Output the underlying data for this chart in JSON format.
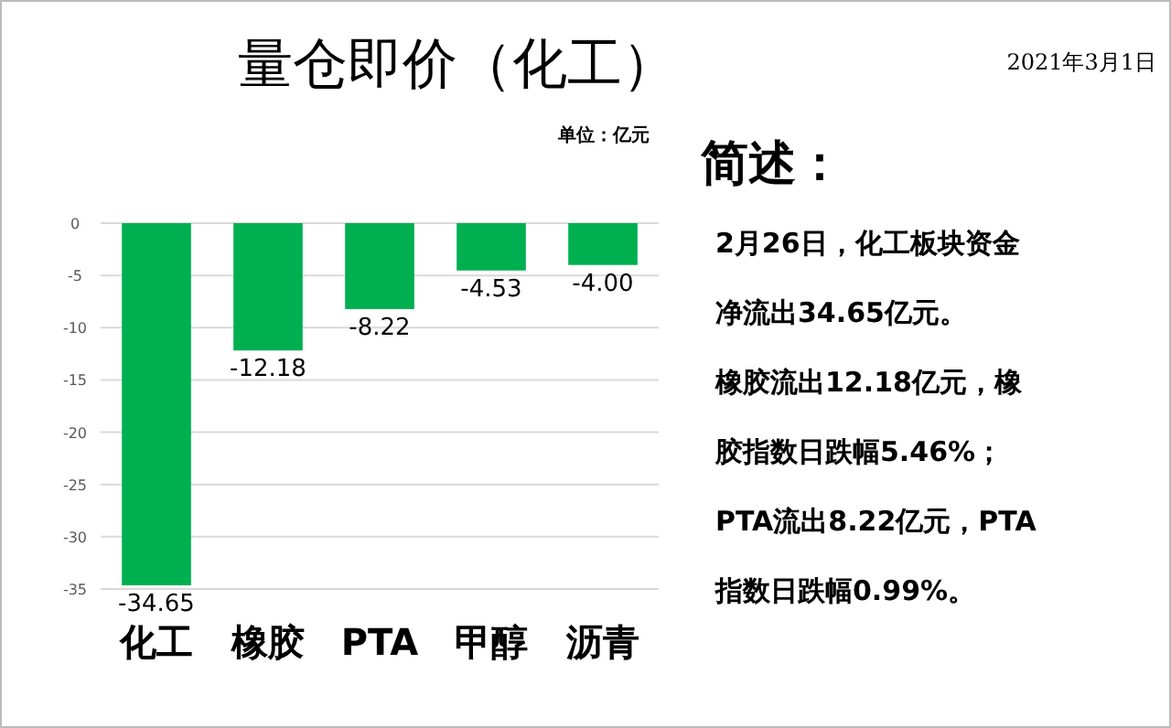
{
  "chart_data": {
    "type": "bar",
    "title": "量仓即价（化工）",
    "subtitle": "单位：亿元",
    "categories": [
      "化工",
      "橡胶",
      "PTA",
      "甲醇",
      "沥青"
    ],
    "values": [
      -34.65,
      -12.18,
      -8.22,
      -4.53,
      -4.0
    ],
    "value_labels": [
      "-34.65",
      "-12.18",
      "-8.22",
      "-4.53",
      "-4.00"
    ],
    "color": "#00b050",
    "ylim": [
      -35,
      0
    ],
    "yticks": [
      0,
      -5,
      -10,
      -15,
      -20,
      -25,
      -30,
      -35
    ],
    "grid": "y",
    "annotations": [
      "2021年3月1日",
      "简述：",
      "2月26日，化工板块资金",
      "净流出34.65亿元。",
      "橡胶流出12.18亿元，橡",
      "胶指数日跌幅5.46%；",
      "PTA流出8.22亿元，PTA",
      "指数日跌幅0.99%。"
    ]
  }
}
